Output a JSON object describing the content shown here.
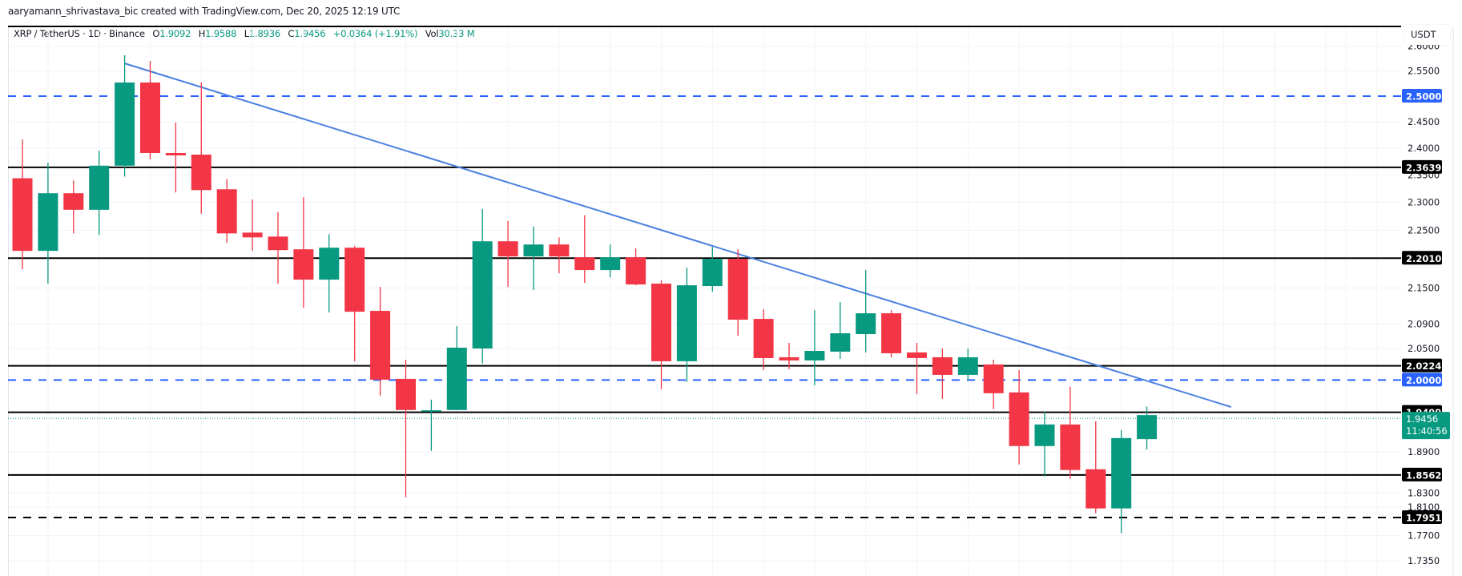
{
  "header": {
    "credit": "aaryamann_shrivastava_bic created with TradingView.com, Dec 20, 2025 12:19 UTC"
  },
  "legend": {
    "symbol": "XRP / TetherUS · 1D · Binance",
    "open_label": "O",
    "open": "1.9092",
    "high_label": "H",
    "high": "1.9588",
    "low_label": "L",
    "low": "1.8936",
    "close_label": "C",
    "close": "1.9456",
    "change": "+0.0364 (+1.91%)",
    "vol_label": "Vol",
    "vol": "30.33 M"
  },
  "price_axis": {
    "currency": "USDT",
    "ticks": [
      "2.6000",
      "2.5500",
      "2.4500",
      "2.4000",
      "2.3500",
      "2.3000",
      "2.2500",
      "2.1500",
      "2.0900",
      "2.0500",
      "1.8900",
      "1.8300",
      "1.8100",
      "1.7700",
      "1.7350"
    ],
    "current_price": "1.9456",
    "countdown": "11:40:56"
  },
  "colors": {
    "up": "#089981",
    "down": "#F23645",
    "level_line": "#000000",
    "round_level": "#2962FF",
    "trendline": "#4A7FE0",
    "grid": "#F0F3FA"
  },
  "chart_data": {
    "type": "candlestick",
    "title": "XRP / TetherUS · 1D · Binance",
    "xlabel": "",
    "ylabel": "USDT",
    "scale": "log",
    "ylim": [
      1.72,
      2.63
    ],
    "grid": true,
    "candles": [
      {
        "o": 2.3437,
        "h": 2.4164,
        "l": 2.1819,
        "c": 2.2137
      },
      {
        "o": 2.2137,
        "h": 2.3729,
        "l": 2.1574,
        "c": 2.3163
      },
      {
        "o": 2.3163,
        "h": 2.3393,
        "l": 2.2443,
        "c": 2.2864
      },
      {
        "o": 2.2864,
        "h": 2.3952,
        "l": 2.2415,
        "c": 2.367
      },
      {
        "o": 2.367,
        "h": 2.5816,
        "l": 2.3466,
        "c": 2.5269
      },
      {
        "o": 2.5269,
        "h": 2.5702,
        "l": 2.3788,
        "c": 2.3907
      },
      {
        "o": 2.3907,
        "h": 2.4486,
        "l": 2.3177,
        "c": 2.3862
      },
      {
        "o": 2.3877,
        "h": 2.5269,
        "l": 2.2793,
        "c": 2.322
      },
      {
        "o": 2.3235,
        "h": 2.3422,
        "l": 2.2276,
        "c": 2.2443
      },
      {
        "o": 2.2457,
        "h": 2.3049,
        "l": 2.2137,
        "c": 2.2373
      },
      {
        "o": 2.2387,
        "h": 2.2821,
        "l": 2.1574,
        "c": 2.215
      },
      {
        "o": 2.2164,
        "h": 2.3091,
        "l": 2.117,
        "c": 2.1642
      },
      {
        "o": 2.1642,
        "h": 2.2429,
        "l": 2.109,
        "c": 2.2192
      },
      {
        "o": 2.2192,
        "h": 2.222,
        "l": 2.0297,
        "c": 2.1103
      },
      {
        "o": 2.1117,
        "h": 2.1519,
        "l": 1.9756,
        "c": 2.0005
      },
      {
        "o": 2.0018,
        "h": 2.0322,
        "l": 1.824,
        "c": 1.9534
      },
      {
        "o": 1.951,
        "h": 1.9694,
        "l": 1.8917,
        "c": 1.953
      },
      {
        "o": 1.9534,
        "h": 2.0866,
        "l": 1.9534,
        "c": 2.0515
      },
      {
        "o": 2.0502,
        "h": 2.2878,
        "l": 2.0259,
        "c": 2.2304
      },
      {
        "o": 2.2304,
        "h": 2.2666,
        "l": 2.1519,
        "c": 2.204
      },
      {
        "o": 2.204,
        "h": 2.2568,
        "l": 2.1465,
        "c": 2.2248
      },
      {
        "o": 2.2248,
        "h": 2.2373,
        "l": 2.1751,
        "c": 2.204
      },
      {
        "o": 2.2026,
        "h": 2.2765,
        "l": 2.1587,
        "c": 2.1806
      },
      {
        "o": 2.1806,
        "h": 2.2248,
        "l": 2.1683,
        "c": 2.2026
      },
      {
        "o": 2.2026,
        "h": 2.2178,
        "l": 2.1546,
        "c": 2.156
      },
      {
        "o": 2.1574,
        "h": 2.1628,
        "l": 1.9855,
        "c": 2.0297
      },
      {
        "o": 2.0297,
        "h": 2.1847,
        "l": 1.9968,
        "c": 2.1546
      },
      {
        "o": 2.1533,
        "h": 2.2206,
        "l": 2.1438,
        "c": 2.1998
      },
      {
        "o": 2.1998,
        "h": 2.2164,
        "l": 2.0709,
        "c": 2.0971
      },
      {
        "o": 2.0984,
        "h": 2.1143,
        "l": 2.0157,
        "c": 2.0348
      },
      {
        "o": 2.0361,
        "h": 2.0592,
        "l": 2.017,
        "c": 2.031
      },
      {
        "o": 2.031,
        "h": 2.113,
        "l": 1.9918,
        "c": 2.0463
      },
      {
        "o": 2.0451,
        "h": 2.1263,
        "l": 2.0335,
        "c": 2.0748
      },
      {
        "o": 2.0735,
        "h": 2.1806,
        "l": 2.0438,
        "c": 2.1077
      },
      {
        "o": 2.1077,
        "h": 2.113,
        "l": 2.0361,
        "c": 2.0425
      },
      {
        "o": 2.0438,
        "h": 2.0592,
        "l": 1.9781,
        "c": 2.0348
      },
      {
        "o": 2.0361,
        "h": 2.0502,
        "l": 1.9706,
        "c": 2.0081
      },
      {
        "o": 2.0081,
        "h": 2.0502,
        "l": 1.9993,
        "c": 2.0361
      },
      {
        "o": 2.0246,
        "h": 2.0322,
        "l": 1.9546,
        "c": 1.9793
      },
      {
        "o": 1.9806,
        "h": 2.0157,
        "l": 1.8716,
        "c": 1.8988
      },
      {
        "o": 1.8988,
        "h": 1.9509,
        "l": 1.854,
        "c": 1.9313
      },
      {
        "o": 1.9313,
        "h": 1.9893,
        "l": 1.8505,
        "c": 1.8634
      },
      {
        "o": 1.8645,
        "h": 1.9362,
        "l": 1.8012,
        "c": 1.808
      },
      {
        "o": 1.808,
        "h": 1.9228,
        "l": 1.7731,
        "c": 1.9108
      },
      {
        "o": 1.9092,
        "h": 1.9588,
        "l": 1.8936,
        "c": 1.9456
      }
    ],
    "horizontal_levels": [
      {
        "price": 2.3639,
        "label": "2.3639",
        "style": "solid",
        "color": "#000000"
      },
      {
        "price": 2.201,
        "label": "2.2010",
        "style": "solid",
        "color": "#000000"
      },
      {
        "price": 2.0224,
        "label": "2.0224",
        "style": "solid",
        "color": "#000000"
      },
      {
        "price": 1.9499,
        "label": "1.9499",
        "style": "solid",
        "color": "#000000"
      },
      {
        "price": 1.8562,
        "label": "1.8562",
        "style": "solid",
        "color": "#000000"
      },
      {
        "price": 1.7951,
        "label": "1.7951",
        "style": "dashed",
        "color": "#000000"
      },
      {
        "price": 2.5,
        "label": "2.5000",
        "style": "dashed",
        "color": "#2962FF"
      },
      {
        "price": 2.0,
        "label": "2.0000",
        "style": "dashed",
        "color": "#2962FF"
      }
    ],
    "trendline": {
      "from": {
        "candle": 4,
        "price": 2.5652
      },
      "to": {
        "candle": 47.3,
        "price": 1.958
      }
    },
    "last_price": 1.9456,
    "top_frame_price": 2.627
  }
}
